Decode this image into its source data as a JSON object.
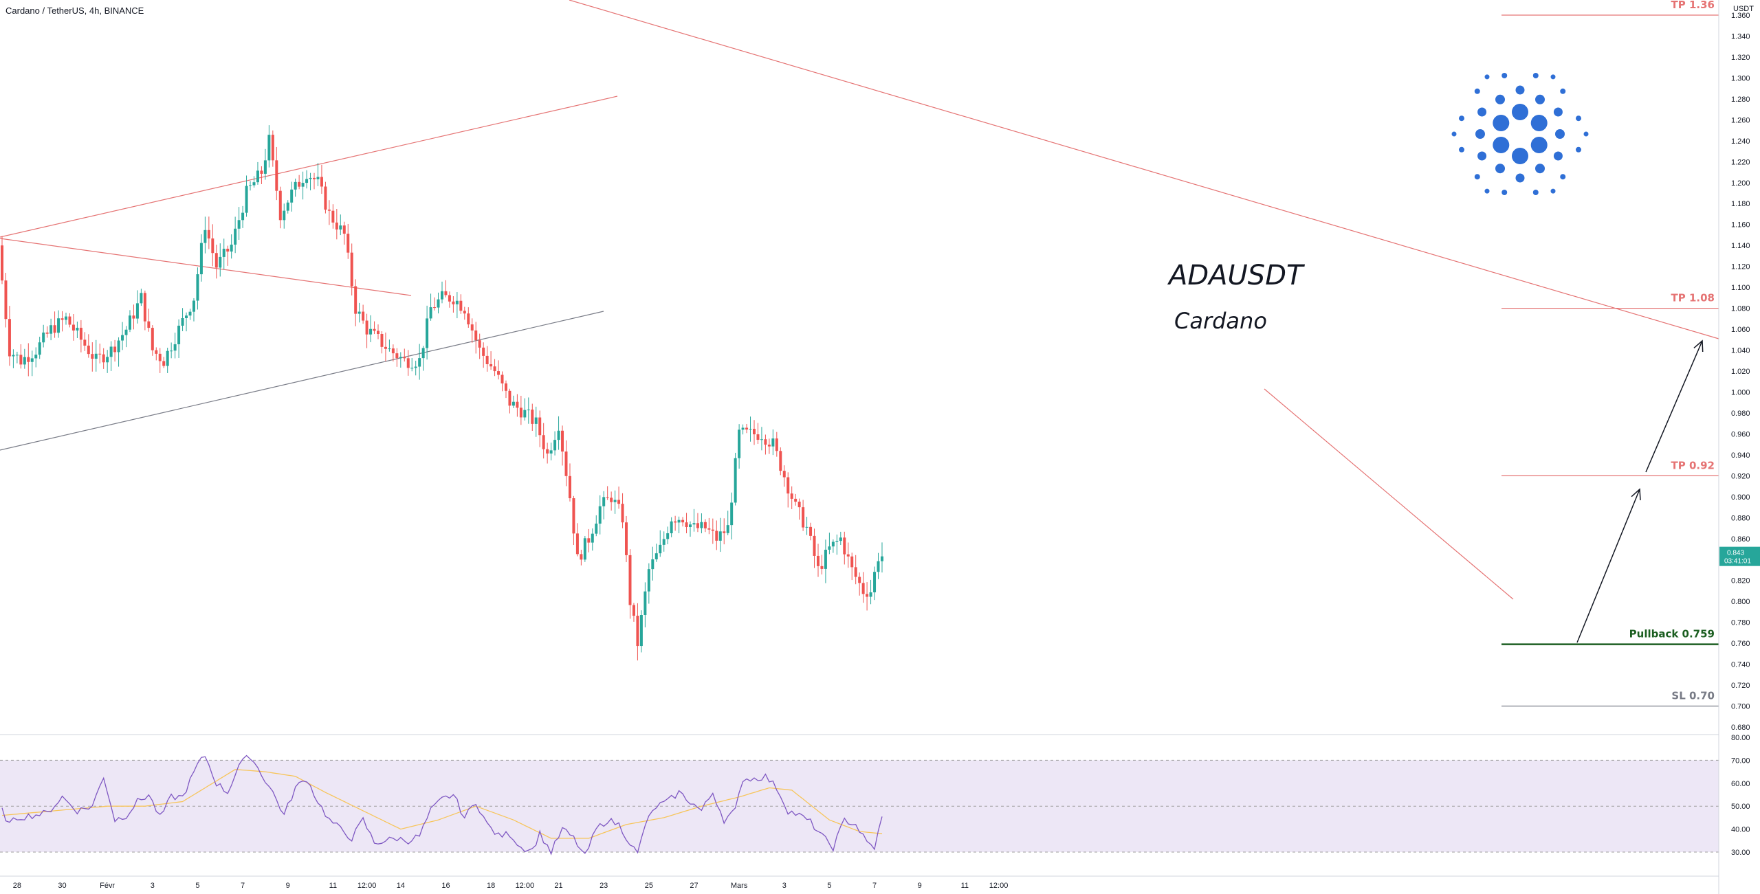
{
  "header": {
    "title": "Cardano / TetherUS, 4h, BINANCE"
  },
  "annotations": {
    "symbol": "ADAUSDT",
    "name": "Cardano"
  },
  "colors": {
    "up": "#26a69a",
    "down": "#ef5350",
    "rsi_line": "#7e57c2",
    "rsi_ma": "#f7c55a",
    "rsi_band": "#ede7f6",
    "trend": "#e57373",
    "support": "#787b86",
    "tp": "#e57373",
    "pullback": "#1b5e20",
    "sl": "#787b86"
  },
  "price_axis": {
    "unit": "USDT",
    "ticks": [
      "1.360",
      "1.340",
      "1.320",
      "1.300",
      "1.280",
      "1.260",
      "1.240",
      "1.220",
      "1.200",
      "1.180",
      "1.160",
      "1.140",
      "1.120",
      "1.100",
      "1.080",
      "1.060",
      "1.040",
      "1.020",
      "1.000",
      "0.980",
      "0.960",
      "0.940",
      "0.920",
      "0.900",
      "0.880",
      "0.860",
      "0.840",
      "0.820",
      "0.800",
      "0.780",
      "0.760",
      "0.740",
      "0.720",
      "0.700",
      "0.680"
    ],
    "last_price": "0.843",
    "countdown": "03:41:01"
  },
  "rsi_axis": {
    "ticks": [
      "80.00",
      "70.00",
      "60.00",
      "50.00",
      "40.00",
      "30.00"
    ]
  },
  "time_axis": {
    "labels": [
      {
        "text": "28",
        "i": 4
      },
      {
        "text": "30",
        "i": 16
      },
      {
        "text": "Févr",
        "i": 28
      },
      {
        "text": "3",
        "i": 40
      },
      {
        "text": "5",
        "i": 52
      },
      {
        "text": "7",
        "i": 64
      },
      {
        "text": "9",
        "i": 76
      },
      {
        "text": "11",
        "i": 88
      },
      {
        "text": "12:00",
        "i": 97
      },
      {
        "text": "14",
        "i": 106
      },
      {
        "text": "16",
        "i": 118
      },
      {
        "text": "18",
        "i": 130
      },
      {
        "text": "12:00",
        "i": 139
      },
      {
        "text": "21",
        "i": 148
      },
      {
        "text": "23",
        "i": 160
      },
      {
        "text": "25",
        "i": 172
      },
      {
        "text": "27",
        "i": 184
      },
      {
        "text": "Mars",
        "i": 196
      },
      {
        "text": "3",
        "i": 208
      },
      {
        "text": "5",
        "i": 220
      },
      {
        "text": "7",
        "i": 232
      },
      {
        "text": "9",
        "i": 244
      },
      {
        "text": "11",
        "i": 256
      },
      {
        "text": "12:00",
        "i": 265
      }
    ]
  },
  "levels": [
    {
      "label": "TP 1.36",
      "price": 1.36,
      "kind": "tp"
    },
    {
      "label": "TP 1.08",
      "price": 1.08,
      "kind": "tp"
    },
    {
      "label": "TP 0.92",
      "price": 0.92,
      "kind": "tp"
    },
    {
      "label": "Pullback 0.759",
      "price": 0.759,
      "kind": "pullback"
    },
    {
      "label": "SL 0.70",
      "price": 0.7,
      "kind": "sl"
    }
  ],
  "chart_data": {
    "type": "candlestick",
    "title": "Cardano / TetherUS, 4h, BINANCE",
    "ylim": [
      0.68,
      1.37
    ],
    "rsi_ylim": [
      25,
      80
    ],
    "rsi_band": [
      30,
      70
    ],
    "anchors": [
      [
        0,
        1.14
      ],
      [
        3,
        1.04
      ],
      [
        6,
        1.03
      ],
      [
        10,
        1.04
      ],
      [
        14,
        1.06
      ],
      [
        18,
        1.07
      ],
      [
        22,
        1.05
      ],
      [
        26,
        1.03
      ],
      [
        30,
        1.04
      ],
      [
        34,
        1.06
      ],
      [
        38,
        1.09
      ],
      [
        41,
        1.04
      ],
      [
        44,
        1.03
      ],
      [
        48,
        1.06
      ],
      [
        52,
        1.09
      ],
      [
        55,
        1.16
      ],
      [
        58,
        1.12
      ],
      [
        62,
        1.14
      ],
      [
        66,
        1.19
      ],
      [
        70,
        1.21
      ],
      [
        72,
        1.24
      ],
      [
        75,
        1.17
      ],
      [
        78,
        1.19
      ],
      [
        82,
        1.21
      ],
      [
        85,
        1.2
      ],
      [
        88,
        1.17
      ],
      [
        92,
        1.15
      ],
      [
        95,
        1.08
      ],
      [
        98,
        1.06
      ],
      [
        101,
        1.05
      ],
      [
        104,
        1.04
      ],
      [
        108,
        1.03
      ],
      [
        112,
        1.03
      ],
      [
        115,
        1.08
      ],
      [
        118,
        1.09
      ],
      [
        121,
        1.09
      ],
      [
        124,
        1.08
      ],
      [
        128,
        1.04
      ],
      [
        132,
        1.02
      ],
      [
        136,
        0.99
      ],
      [
        140,
        0.98
      ],
      [
        143,
        0.97
      ],
      [
        146,
        0.94
      ],
      [
        149,
        0.97
      ],
      [
        152,
        0.9
      ],
      [
        154,
        0.84
      ],
      [
        157,
        0.86
      ],
      [
        160,
        0.89
      ],
      [
        163,
        0.9
      ],
      [
        166,
        0.88
      ],
      [
        168,
        0.8
      ],
      [
        170,
        0.76
      ],
      [
        173,
        0.83
      ],
      [
        176,
        0.85
      ],
      [
        179,
        0.88
      ],
      [
        182,
        0.88
      ],
      [
        185,
        0.87
      ],
      [
        188,
        0.87
      ],
      [
        191,
        0.86
      ],
      [
        194,
        0.87
      ],
      [
        197,
        0.96
      ],
      [
        200,
        0.96
      ],
      [
        203,
        0.96
      ],
      [
        206,
        0.95
      ],
      [
        209,
        0.92
      ],
      [
        212,
        0.89
      ],
      [
        215,
        0.87
      ],
      [
        218,
        0.83
      ],
      [
        221,
        0.85
      ],
      [
        224,
        0.86
      ],
      [
        227,
        0.83
      ],
      [
        230,
        0.81
      ],
      [
        232,
        0.81
      ],
      [
        234,
        0.843
      ]
    ],
    "rsi_anchors": [
      [
        0,
        48
      ],
      [
        2,
        42
      ],
      [
        4,
        45
      ],
      [
        8,
        46
      ],
      [
        12,
        47
      ],
      [
        16,
        54
      ],
      [
        20,
        48
      ],
      [
        24,
        50
      ],
      [
        27,
        63
      ],
      [
        30,
        44
      ],
      [
        33,
        46
      ],
      [
        36,
        52
      ],
      [
        39,
        55
      ],
      [
        42,
        45
      ],
      [
        45,
        54
      ],
      [
        48,
        54
      ],
      [
        52,
        68
      ],
      [
        54,
        72
      ],
      [
        57,
        60
      ],
      [
        60,
        56
      ],
      [
        63,
        68
      ],
      [
        66,
        72
      ],
      [
        69,
        64
      ],
      [
        72,
        56
      ],
      [
        75,
        46
      ],
      [
        78,
        58
      ],
      [
        81,
        62
      ],
      [
        84,
        52
      ],
      [
        87,
        44
      ],
      [
        90,
        40
      ],
      [
        93,
        36
      ],
      [
        96,
        44
      ],
      [
        99,
        34
      ],
      [
        102,
        35
      ],
      [
        105,
        36
      ],
      [
        108,
        35
      ],
      [
        111,
        37
      ],
      [
        114,
        48
      ],
      [
        117,
        53
      ],
      [
        120,
        55
      ],
      [
        123,
        45
      ],
      [
        126,
        52
      ],
      [
        129,
        42
      ],
      [
        132,
        37
      ],
      [
        135,
        38
      ],
      [
        138,
        32
      ],
      [
        141,
        31
      ],
      [
        143,
        38
      ],
      [
        146,
        30
      ],
      [
        149,
        40
      ],
      [
        152,
        36
      ],
      [
        155,
        28
      ],
      [
        158,
        40
      ],
      [
        161,
        44
      ],
      [
        164,
        42
      ],
      [
        167,
        34
      ],
      [
        169,
        29
      ],
      [
        171,
        42
      ],
      [
        174,
        50
      ],
      [
        177,
        52
      ],
      [
        180,
        56
      ],
      [
        183,
        52
      ],
      [
        186,
        48
      ],
      [
        189,
        56
      ],
      [
        192,
        44
      ],
      [
        195,
        48
      ],
      [
        197,
        62
      ],
      [
        200,
        62
      ],
      [
        203,
        63
      ],
      [
        206,
        58
      ],
      [
        209,
        48
      ],
      [
        212,
        46
      ],
      [
        215,
        43
      ],
      [
        218,
        37
      ],
      [
        221,
        32
      ],
      [
        224,
        44
      ],
      [
        227,
        42
      ],
      [
        230,
        34
      ],
      [
        232,
        32
      ],
      [
        234,
        45
      ]
    ],
    "rsi_ma_anchors": [
      [
        0,
        46
      ],
      [
        14,
        48
      ],
      [
        28,
        50
      ],
      [
        38,
        50
      ],
      [
        48,
        52
      ],
      [
        54,
        58
      ],
      [
        62,
        66
      ],
      [
        70,
        65
      ],
      [
        78,
        63
      ],
      [
        86,
        56
      ],
      [
        96,
        48
      ],
      [
        106,
        40
      ],
      [
        116,
        44
      ],
      [
        126,
        50
      ],
      [
        136,
        44
      ],
      [
        146,
        36
      ],
      [
        156,
        36
      ],
      [
        166,
        42
      ],
      [
        176,
        45
      ],
      [
        186,
        50
      ],
      [
        196,
        54
      ],
      [
        204,
        58
      ],
      [
        210,
        57
      ],
      [
        220,
        44
      ],
      [
        228,
        39
      ],
      [
        234,
        38
      ]
    ]
  }
}
